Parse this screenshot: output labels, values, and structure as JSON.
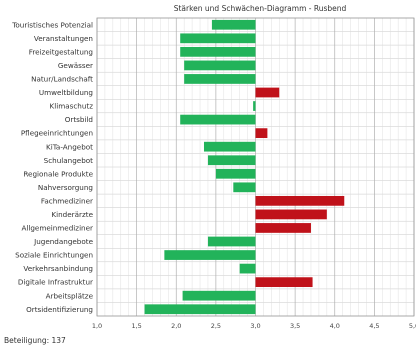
{
  "chart_data": {
    "type": "bar",
    "orientation": "horizontal",
    "title": "Stärken und Schwächen-Diagramm - Rusbend",
    "xlim": [
      1.0,
      5.0
    ],
    "ticks": [
      "1,0",
      "1,5",
      "2,0",
      "2,5",
      "3,0",
      "3,5",
      "4,0",
      "4,5",
      "5,0"
    ],
    "baseline": 3.0,
    "grid": true,
    "colors": {
      "strength": "#22b35a",
      "weakness": "#c0121a",
      "grid": "#c8c8c8"
    },
    "categories": [
      "Touristisches Potenzial",
      "Veranstaltungen",
      "Freizeitgestaltung",
      "Gewässer",
      "Natur/Landschaft",
      "Umweltbildung",
      "Klimaschutz",
      "Ortsbild",
      "Pflegeeinrichtungen",
      "KiTa-Angebot",
      "Schulangebot",
      "Regionale Produkte",
      "Nahversorgung",
      "Fachmediziner",
      "Kinderärzte",
      "Allgemeinmediziner",
      "Jugendangebote",
      "Soziale Einrichtungen",
      "Verkehrsanbindung",
      "Digitale Infrastruktur",
      "Arbeitsplätze",
      "Ortsidentifizierung"
    ],
    "values": [
      2.45,
      2.05,
      2.05,
      2.1,
      2.1,
      3.3,
      2.97,
      2.05,
      3.15,
      2.35,
      2.4,
      2.5,
      2.72,
      4.12,
      3.9,
      3.7,
      2.4,
      1.85,
      2.8,
      3.72,
      2.08,
      1.6
    ]
  },
  "footer": {
    "participation": "Beteiligung: 137"
  }
}
